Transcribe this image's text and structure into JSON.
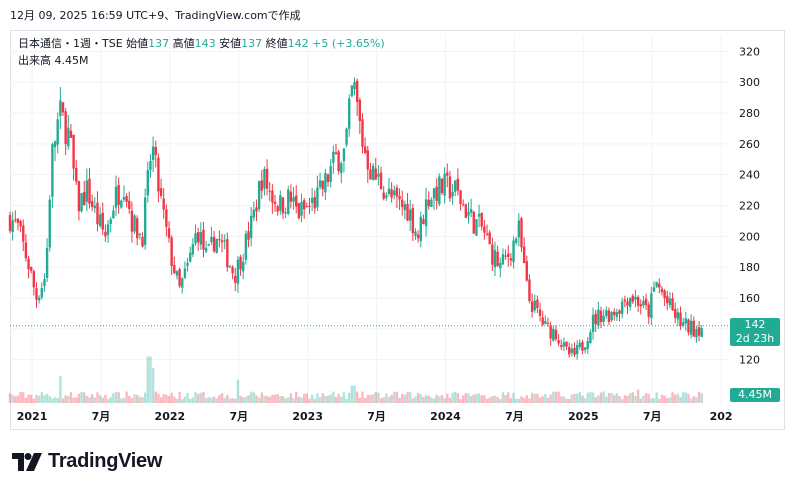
{
  "header": {
    "timestamp": "12月 09, 2025 16:59 UTC+9、TradingView.comで作成"
  },
  "legend": {
    "symbol": "日本通信・1週・TSE",
    "open_label": "始値",
    "open": "137",
    "high_label": "高値",
    "high": "143",
    "low_label": "安値",
    "low": "137",
    "close_label": "終値",
    "close": "142",
    "change": "+5 (+3.65%)",
    "volume_label": "出来高",
    "volume": "4.45M"
  },
  "price_badge": {
    "price": "142",
    "countdown": "2d 23h"
  },
  "volume_badge": "4.45M",
  "logo": {
    "text": "TradingView"
  },
  "colors": {
    "up": "#22ab94",
    "down": "#f23645",
    "grid": "#f0f3fa",
    "text": "#131722"
  },
  "chart_data": {
    "type": "candlestick",
    "symbol": "日本通信",
    "interval": "1週",
    "exchange": "TSE",
    "ylim": [
      110,
      330
    ],
    "y_ticks": [
      120,
      140,
      160,
      180,
      200,
      220,
      240,
      260,
      280,
      300,
      320
    ],
    "x_ticks": [
      {
        "label": "2021",
        "t": 2021.0
      },
      {
        "label": "7月",
        "t": 2021.5
      },
      {
        "label": "2022",
        "t": 2022.0
      },
      {
        "label": "7月",
        "t": 2022.5
      },
      {
        "label": "2023",
        "t": 2023.0
      },
      {
        "label": "7月",
        "t": 2023.5
      },
      {
        "label": "2024",
        "t": 2024.0
      },
      {
        "label": "7月",
        "t": 2024.5
      },
      {
        "label": "2025",
        "t": 2025.0
      },
      {
        "label": "7月",
        "t": 2025.5
      },
      {
        "label": "202",
        "t": 2026.0
      }
    ],
    "last_price": 142,
    "price_path": [
      [
        2020.84,
        212
      ],
      [
        2020.9,
        205
      ],
      [
        2020.98,
        180
      ],
      [
        2021.03,
        160
      ],
      [
        2021.1,
        175
      ],
      [
        2021.14,
        250
      ],
      [
        2021.2,
        280
      ],
      [
        2021.27,
        265
      ],
      [
        2021.33,
        220
      ],
      [
        2021.4,
        230
      ],
      [
        2021.47,
        212
      ],
      [
        2021.53,
        200
      ],
      [
        2021.6,
        225
      ],
      [
        2021.67,
        235
      ],
      [
        2021.73,
        208
      ],
      [
        2021.8,
        200
      ],
      [
        2021.87,
        260
      ],
      [
        2021.92,
        230
      ],
      [
        2022.0,
        190
      ],
      [
        2022.07,
        165
      ],
      [
        2022.13,
        180
      ],
      [
        2022.2,
        205
      ],
      [
        2022.27,
        185
      ],
      [
        2022.33,
        200
      ],
      [
        2022.4,
        190
      ],
      [
        2022.47,
        175
      ],
      [
        2022.53,
        190
      ],
      [
        2022.6,
        210
      ],
      [
        2022.67,
        240
      ],
      [
        2022.73,
        228
      ],
      [
        2022.8,
        220
      ],
      [
        2022.87,
        225
      ],
      [
        2022.93,
        215
      ],
      [
        2023.0,
        218
      ],
      [
        2023.07,
        225
      ],
      [
        2023.13,
        235
      ],
      [
        2023.2,
        250
      ],
      [
        2023.27,
        255
      ],
      [
        2023.33,
        300
      ],
      [
        2023.4,
        260
      ],
      [
        2023.47,
        240
      ],
      [
        2023.53,
        235
      ],
      [
        2023.6,
        225
      ],
      [
        2023.67,
        220
      ],
      [
        2023.73,
        218
      ],
      [
        2023.8,
        200
      ],
      [
        2023.87,
        225
      ],
      [
        2023.93,
        230
      ],
      [
        2024.0,
        232
      ],
      [
        2024.07,
        230
      ],
      [
        2024.13,
        220
      ],
      [
        2024.2,
        210
      ],
      [
        2024.27,
        205
      ],
      [
        2024.33,
        190
      ],
      [
        2024.4,
        180
      ],
      [
        2024.47,
        190
      ],
      [
        2024.53,
        205
      ],
      [
        2024.6,
        160
      ],
      [
        2024.67,
        150
      ],
      [
        2024.73,
        140
      ],
      [
        2024.8,
        138
      ],
      [
        2024.87,
        125
      ],
      [
        2024.93,
        122
      ],
      [
        2025.0,
        130
      ],
      [
        2025.07,
        145
      ],
      [
        2025.13,
        150
      ],
      [
        2025.2,
        150
      ],
      [
        2025.27,
        155
      ],
      [
        2025.33,
        162
      ],
      [
        2025.4,
        158
      ],
      [
        2025.47,
        150
      ],
      [
        2025.53,
        170
      ],
      [
        2025.6,
        158
      ],
      [
        2025.67,
        148
      ],
      [
        2025.73,
        142
      ],
      [
        2025.8,
        140
      ],
      [
        2025.87,
        142
      ]
    ],
    "volume_ylim": [
      0,
      30
    ],
    "volume_spikes": [
      [
        2021.2,
        14
      ],
      [
        2021.85,
        24
      ],
      [
        2021.88,
        18
      ],
      [
        2022.5,
        12
      ],
      [
        2023.33,
        9
      ],
      [
        2025.4,
        7
      ]
    ]
  }
}
